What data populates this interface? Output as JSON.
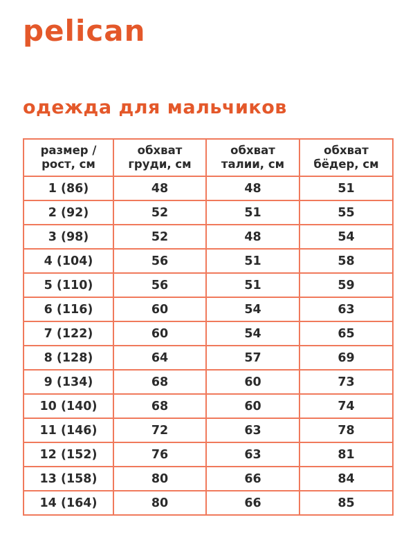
{
  "brand": {
    "logo_text": "pelican"
  },
  "heading": {
    "title": "одежда для мальчиков"
  },
  "colors": {
    "accent_orange": "#E4582A",
    "table_border": "#F0795B",
    "text_dark": "#2B2B2B",
    "background": "#FFFFFF"
  },
  "table": {
    "headers": [
      [
        "размер /",
        "рост, см"
      ],
      [
        "обхват",
        "груди, см"
      ],
      [
        "обхват",
        "талии, см"
      ],
      [
        "обхват",
        "бёдер, см"
      ]
    ],
    "rows": [
      [
        "1 (86)",
        "48",
        "48",
        "51"
      ],
      [
        "2 (92)",
        "52",
        "51",
        "55"
      ],
      [
        "3 (98)",
        "52",
        "48",
        "54"
      ],
      [
        "4 (104)",
        "56",
        "51",
        "58"
      ],
      [
        "5 (110)",
        "56",
        "51",
        "59"
      ],
      [
        "6 (116)",
        "60",
        "54",
        "63"
      ],
      [
        "7 (122)",
        "60",
        "54",
        "65"
      ],
      [
        "8 (128)",
        "64",
        "57",
        "69"
      ],
      [
        "9 (134)",
        "68",
        "60",
        "73"
      ],
      [
        "10 (140)",
        "68",
        "60",
        "74"
      ],
      [
        "11 (146)",
        "72",
        "63",
        "78"
      ],
      [
        "12 (152)",
        "76",
        "63",
        "81"
      ],
      [
        "13 (158)",
        "80",
        "66",
        "84"
      ],
      [
        "14 (164)",
        "80",
        "66",
        "85"
      ]
    ]
  }
}
